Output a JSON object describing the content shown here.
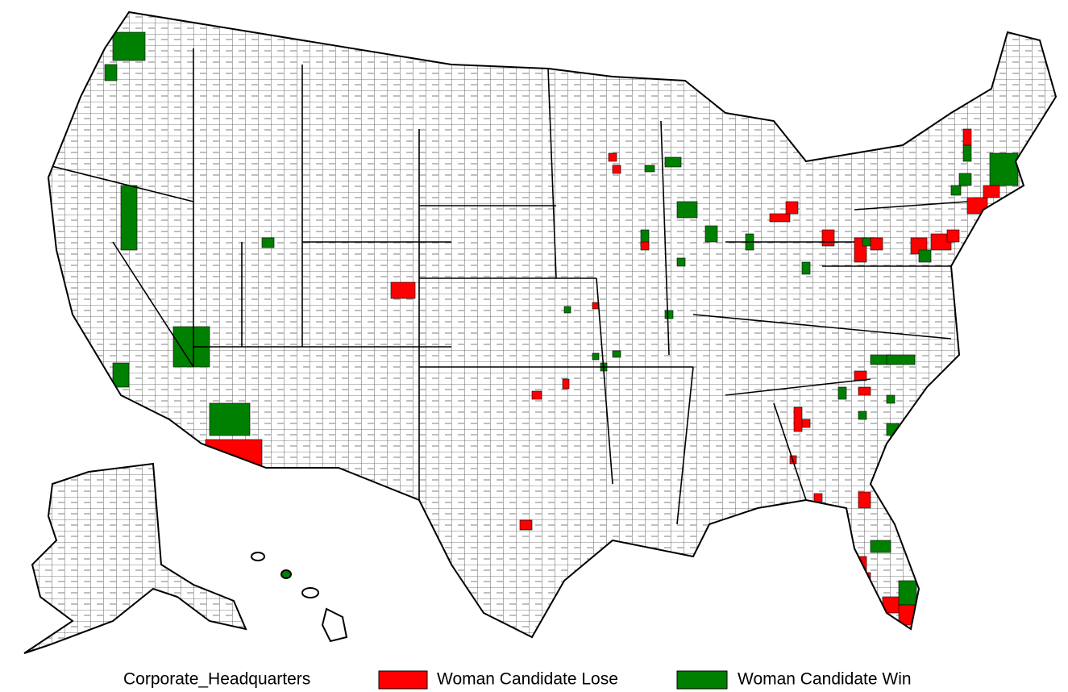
{
  "legend": {
    "title": "Corporate_Headquarters",
    "items": [
      {
        "label": "Woman Candidate Lose",
        "color": "#ff0000"
      },
      {
        "label": "Woman Candidate Win",
        "color": "#008000"
      }
    ]
  }
}
